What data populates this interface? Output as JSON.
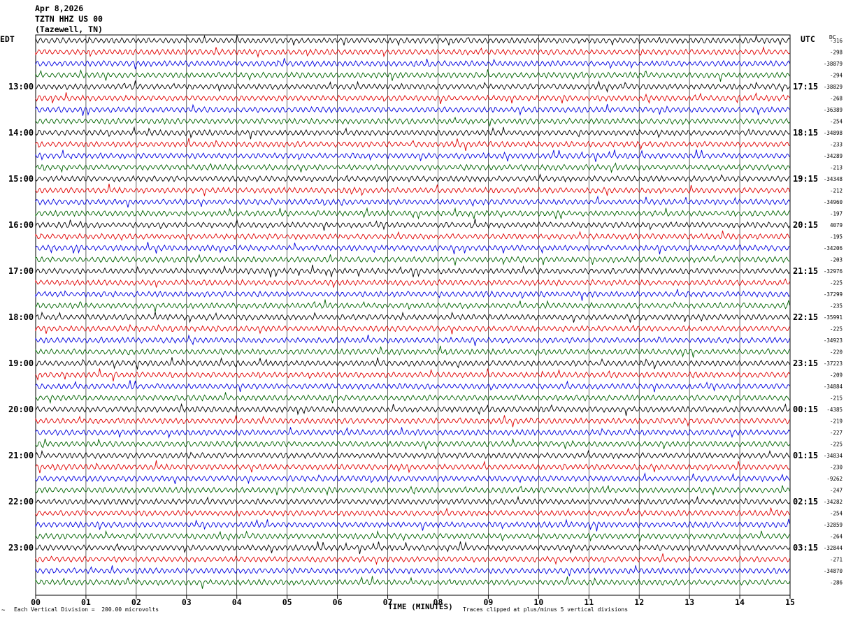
{
  "header": {
    "date": "Apr 8,2026",
    "station": "TZTN HHZ US 00",
    "location": "(Tazewell, TN)"
  },
  "left_zone_label": "EDT",
  "right_zone_label": "UTC",
  "dc_label": "DC",
  "footer": {
    "scale_note": "Each Vertical Division =  200.00 microvolts",
    "clip_note": "Traces clipped at plus/minus 5 vertical divisions",
    "xaxis_title": "TIME (MINUTES)"
  },
  "chart_data": {
    "type": "line",
    "subtype": "helicorder",
    "xlabel": "TIME (MINUTES)",
    "x_ticks": [
      "00",
      "01",
      "02",
      "03",
      "04",
      "05",
      "06",
      "07",
      "08",
      "09",
      "10",
      "11",
      "12",
      "13",
      "14",
      "15"
    ],
    "xlim": [
      0,
      15
    ],
    "minutes_per_line": 15,
    "line_colors": [
      "#000000",
      "#e00000",
      "#0000e0",
      "#006400"
    ],
    "grid": true,
    "left_time_labels": [
      "13:00",
      "14:00",
      "15:00",
      "16:00",
      "17:00",
      "18:00",
      "19:00",
      "20:00",
      "21:00",
      "22:00",
      "23:00"
    ],
    "right_time_labels": [
      "17:15",
      "18:15",
      "19:15",
      "20:15",
      "21:15",
      "22:15",
      "23:15",
      "00:15",
      "01:15",
      "02:15",
      "03:15"
    ],
    "dc_offsets": [
      "-316",
      "-298",
      "-38879",
      "-294",
      "-38829",
      "-268",
      "-36389",
      "-254",
      "-34898",
      "-233",
      "-34289",
      "-213",
      "-34348",
      "-212",
      "-34960",
      "-197",
      "4079",
      "-195",
      "-34206",
      "-203",
      "-32976",
      "-225",
      "-37299",
      "-235",
      "-35991",
      "-225",
      "-34923",
      "-220",
      "-37223",
      "-209",
      "-34884",
      "-215",
      "-4385",
      "-219",
      "-227",
      "-225",
      "-34834",
      "-230",
      "-9262",
      "-247",
      "-34282",
      "-254",
      "-32859",
      "-264",
      "-32844",
      "-271",
      "-34870",
      "-286"
    ],
    "y_scale_microvolts_per_division": 200.0,
    "clip_divisions": 5
  }
}
